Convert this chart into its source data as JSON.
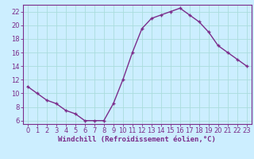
{
  "x": [
    0,
    1,
    2,
    3,
    4,
    5,
    6,
    7,
    8,
    9,
    10,
    11,
    12,
    13,
    14,
    15,
    16,
    17,
    18,
    19,
    20,
    21,
    22,
    23
  ],
  "y": [
    11,
    10,
    9,
    8.5,
    7.5,
    7,
    6,
    6,
    6,
    8.5,
    12,
    16,
    19.5,
    21,
    21.5,
    22,
    22.5,
    21.5,
    20.5,
    19,
    17,
    16,
    15,
    14
  ],
  "line_color": "#7B2D8B",
  "marker": "+",
  "bg_color": "#cceeff",
  "grid_color": "#aadddd",
  "xlabel": "Windchill (Refroidissement éolien,°C)",
  "ylabel": "",
  "xlim": [
    -0.5,
    23.5
  ],
  "ylim": [
    5.5,
    23
  ],
  "xticks": [
    0,
    1,
    2,
    3,
    4,
    5,
    6,
    7,
    8,
    9,
    10,
    11,
    12,
    13,
    14,
    15,
    16,
    17,
    18,
    19,
    20,
    21,
    22,
    23
  ],
  "yticks": [
    6,
    8,
    10,
    12,
    14,
    16,
    18,
    20,
    22
  ],
  "axis_color": "#7B2D8B",
  "tick_color": "#7B2D8B",
  "xlabel_color": "#7B2D8B",
  "xlabel_fontsize": 6.5,
  "tick_fontsize": 6,
  "linewidth": 1.0,
  "markersize": 3,
  "markeredgewidth": 1.0
}
